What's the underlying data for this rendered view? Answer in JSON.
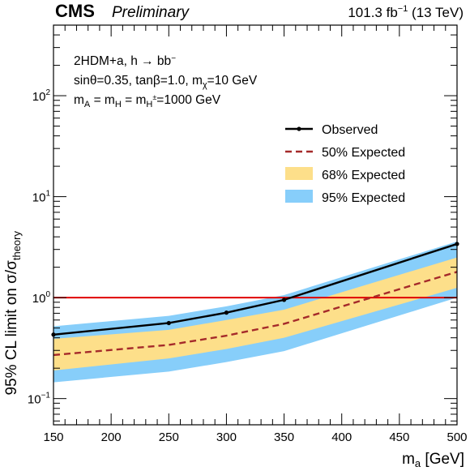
{
  "header": {
    "experiment": "CMS",
    "status": "Preliminary",
    "lumi": "101.3 fb⁻¹ (13 TeV)"
  },
  "info": {
    "line1": "2HDM+a, h → bb̄",
    "line2": "sinθ=0.35, tanβ=1.0, mχ=10 GeV",
    "line3": "mA = mH = mH±=1000 GeV"
  },
  "chart_data": {
    "type": "line",
    "xlabel": "ma [GeV]",
    "ylabel": "95% CL limit on σ/σtheory",
    "xlim": [
      150,
      500
    ],
    "ylim": [
      0.055,
      500
    ],
    "yscale": "log",
    "x_ticks": [
      "150",
      "200",
      "250",
      "300",
      "350",
      "400",
      "450",
      "500"
    ],
    "y_ticks": [
      "10⁻¹",
      "10⁰",
      "10¹",
      "10²"
    ],
    "legend_position": "top-right",
    "reference_line": {
      "y": 1.0,
      "color": "#e00000"
    },
    "x": [
      150,
      250,
      300,
      350,
      500
    ],
    "series": [
      {
        "name": "Observed",
        "style": "line-markers",
        "color": "#000000",
        "values": [
          0.43,
          0.56,
          0.71,
          0.95,
          3.4
        ]
      },
      {
        "name": "50% Expected",
        "style": "dashed",
        "color": "#a52a2a",
        "values": [
          0.27,
          0.34,
          0.42,
          0.55,
          1.8
        ]
      },
      {
        "name": "68% Expected",
        "style": "band",
        "color": "#fddf8a",
        "low": [
          0.19,
          0.25,
          0.31,
          0.4,
          1.25
        ],
        "high": [
          0.39,
          0.48,
          0.6,
          0.76,
          2.5
        ]
      },
      {
        "name": "95% Expected",
        "style": "band",
        "color": "#87cefa",
        "low": [
          0.145,
          0.185,
          0.23,
          0.295,
          1.0
        ],
        "high": [
          0.52,
          0.66,
          0.82,
          1.06,
          3.6
        ]
      }
    ]
  }
}
